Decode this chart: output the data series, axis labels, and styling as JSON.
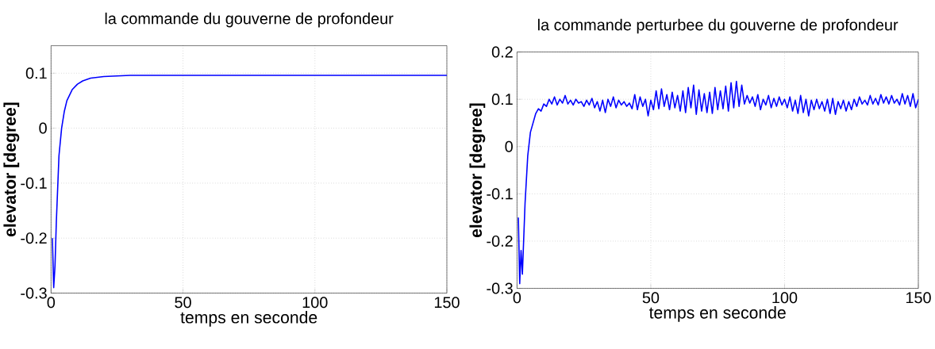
{
  "chart_data": [
    {
      "type": "line",
      "title": "la commande du gouverne de profondeur",
      "xlabel": "temps en seconde",
      "ylabel": "elevator [degree]",
      "xlim": [
        0,
        150
      ],
      "ylim": [
        -0.3,
        0.15
      ],
      "xticks": [
        0,
        50,
        100,
        150
      ],
      "yticks": [
        -0.3,
        -0.2,
        -0.1,
        0,
        0.1
      ],
      "grid": true,
      "series": [
        {
          "color": "#0000ff",
          "x": [
            0.5,
            1,
            1.5,
            2,
            3,
            4,
            5,
            6,
            8,
            10,
            12,
            15,
            20,
            25,
            30,
            40,
            60,
            80,
            100,
            125,
            150
          ],
          "values": [
            -0.2,
            -0.29,
            -0.25,
            -0.17,
            -0.05,
            0.0,
            0.03,
            0.05,
            0.07,
            0.08,
            0.086,
            0.091,
            0.094,
            0.095,
            0.096,
            0.096,
            0.096,
            0.096,
            0.096,
            0.096,
            0.096
          ]
        }
      ]
    },
    {
      "type": "line",
      "title": "la commande perturbee du gouverne de profondeur",
      "xlabel": "temps en seconde",
      "ylabel": "elevator [degree]",
      "xlim": [
        0,
        150
      ],
      "ylim": [
        -0.3,
        0.2
      ],
      "xticks": [
        0,
        50,
        100,
        150
      ],
      "yticks": [
        -0.3,
        -0.2,
        -0.1,
        0,
        0.1,
        0.2
      ],
      "grid": true,
      "series": [
        {
          "color": "#0000ff",
          "x": [
            0.5,
            1,
            1.5,
            2,
            3,
            4,
            5,
            6,
            7,
            8,
            9,
            10,
            11,
            12,
            13,
            14,
            15,
            16,
            17,
            18,
            19,
            20,
            21,
            22,
            23,
            24,
            25,
            26,
            27,
            28,
            29,
            30,
            31,
            32,
            33,
            34,
            35,
            36,
            37,
            38,
            39,
            40,
            41,
            42,
            43,
            44,
            45,
            46,
            47,
            48,
            49,
            50,
            51,
            52,
            53,
            54,
            55,
            56,
            57,
            58,
            59,
            60,
            61,
            62,
            63,
            64,
            65,
            66,
            67,
            68,
            69,
            70,
            71,
            72,
            73,
            74,
            75,
            76,
            77,
            78,
            79,
            80,
            81,
            82,
            83,
            84,
            85,
            86,
            87,
            88,
            89,
            90,
            91,
            92,
            93,
            94,
            95,
            96,
            97,
            98,
            99,
            100,
            101,
            102,
            103,
            104,
            105,
            106,
            107,
            108,
            109,
            110,
            111,
            112,
            113,
            114,
            115,
            116,
            117,
            118,
            119,
            120,
            121,
            122,
            123,
            124,
            125,
            126,
            127,
            128,
            129,
            130,
            131,
            132,
            133,
            134,
            135,
            136,
            137,
            138,
            139,
            140,
            141,
            142,
            143,
            144,
            145,
            146,
            147,
            148,
            149,
            150
          ],
          "values": [
            -0.15,
            -0.29,
            -0.22,
            -0.27,
            -0.12,
            -0.02,
            0.03,
            0.05,
            0.07,
            0.08,
            0.075,
            0.09,
            0.085,
            0.1,
            0.09,
            0.105,
            0.088,
            0.1,
            0.092,
            0.108,
            0.09,
            0.098,
            0.088,
            0.1,
            0.092,
            0.095,
            0.085,
            0.098,
            0.088,
            0.102,
            0.082,
            0.095,
            0.075,
            0.098,
            0.072,
            0.1,
            0.085,
            0.105,
            0.082,
            0.098,
            0.088,
            0.095,
            0.085,
            0.092,
            0.08,
            0.11,
            0.078,
            0.105,
            0.085,
            0.1,
            0.065,
            0.098,
            0.078,
            0.118,
            0.08,
            0.122,
            0.085,
            0.11,
            0.078,
            0.115,
            0.082,
            0.108,
            0.075,
            0.118,
            0.072,
            0.125,
            0.082,
            0.13,
            0.068,
            0.12,
            0.075,
            0.112,
            0.072,
            0.115,
            0.07,
            0.125,
            0.078,
            0.118,
            0.08,
            0.128,
            0.075,
            0.135,
            0.082,
            0.138,
            0.085,
            0.13,
            0.09,
            0.108,
            0.092,
            0.105,
            0.085,
            0.11,
            0.078,
            0.1,
            0.088,
            0.108,
            0.082,
            0.102,
            0.085,
            0.105,
            0.088,
            0.1,
            0.082,
            0.105,
            0.075,
            0.098,
            0.07,
            0.108,
            0.072,
            0.1,
            0.065,
            0.098,
            0.078,
            0.1,
            0.08,
            0.095,
            0.075,
            0.1,
            0.07,
            0.102,
            0.068,
            0.095,
            0.08,
            0.098,
            0.075,
            0.095,
            0.078,
            0.1,
            0.085,
            0.105,
            0.09,
            0.098,
            0.088,
            0.108,
            0.09,
            0.102,
            0.088,
            0.11,
            0.092,
            0.105,
            0.09,
            0.108,
            0.092,
            0.1,
            0.088,
            0.112,
            0.09,
            0.108,
            0.085,
            0.112,
            0.082,
            0.1
          ]
        }
      ]
    }
  ]
}
